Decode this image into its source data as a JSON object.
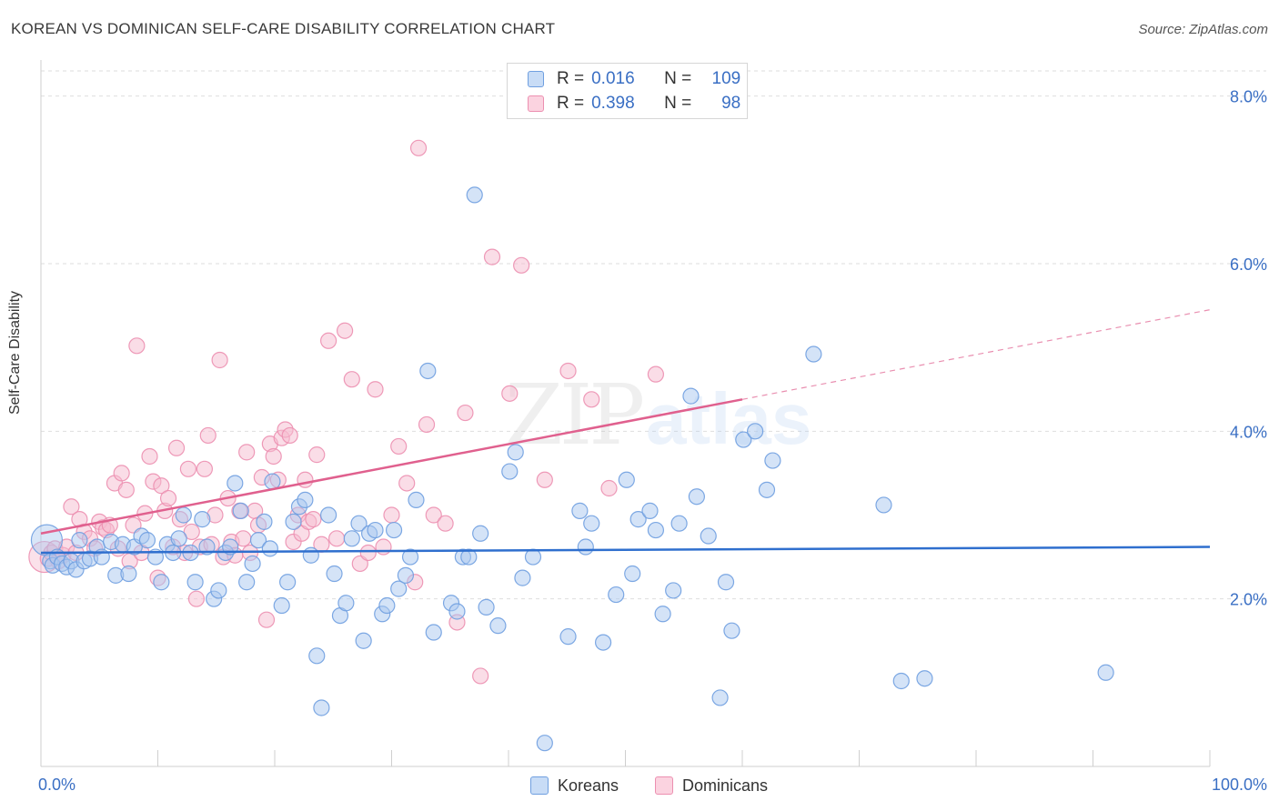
{
  "header": {
    "title": "KOREAN VS DOMINICAN SELF-CARE DISABILITY CORRELATION CHART",
    "source": "Source: ZipAtlas.com"
  },
  "legend": {
    "rows": [
      {
        "r_label": "R =",
        "r_value": "0.016",
        "n_label": "N =",
        "n_value": "109"
      },
      {
        "r_label": "R =",
        "r_value": "0.398",
        "n_label": "N =",
        "n_value": "98"
      }
    ]
  },
  "bottom_legend": [
    "Koreans",
    "Dominicans"
  ],
  "colors": {
    "koreans_fill": "#a9c8f0",
    "koreans_stroke": "#6f9fe0",
    "koreans_line": "#2f6fce",
    "dominicans_fill": "#f6bcd0",
    "dominicans_stroke": "#ec8fb0",
    "dominicans_line": "#e0608e",
    "tick_label": "#3a6fc4",
    "grid": "#dedede"
  },
  "chart_data": {
    "type": "scatter",
    "title": "KOREAN VS DOMINICAN SELF-CARE DISABILITY CORRELATION CHART",
    "xlabel": "",
    "ylabel": "Self-Care Disability",
    "xlim": [
      0,
      100
    ],
    "ylim": [
      0,
      8.3
    ],
    "x_tick_labels": [
      "0.0%",
      "100.0%"
    ],
    "y_ticks": [
      2,
      4,
      6,
      8
    ],
    "y_tick_labels": [
      "2.0%",
      "4.0%",
      "6.0%",
      "8.0%"
    ],
    "grid": true,
    "legend_position": "top-center",
    "series": [
      {
        "name": "Koreans",
        "r": 0.016,
        "n": 109,
        "trend": {
          "x": [
            0,
            100
          ],
          "y": [
            2.55,
            2.62
          ]
        },
        "points": [
          [
            0.5,
            2.7
          ],
          [
            0.8,
            2.45
          ],
          [
            1.0,
            2.4
          ],
          [
            1.4,
            2.5
          ],
          [
            1.8,
            2.42
          ],
          [
            2.2,
            2.38
          ],
          [
            2.6,
            2.45
          ],
          [
            3.0,
            2.35
          ],
          [
            3.3,
            2.7
          ],
          [
            3.7,
            2.45
          ],
          [
            4.2,
            2.48
          ],
          [
            4.8,
            2.62
          ],
          [
            5.2,
            2.5
          ],
          [
            6.0,
            2.68
          ],
          [
            6.4,
            2.28
          ],
          [
            7.0,
            2.65
          ],
          [
            7.5,
            2.3
          ],
          [
            8.0,
            2.62
          ],
          [
            8.6,
            2.75
          ],
          [
            9.1,
            2.7
          ],
          [
            9.8,
            2.5
          ],
          [
            10.3,
            2.2
          ],
          [
            10.8,
            2.65
          ],
          [
            11.3,
            2.55
          ],
          [
            11.8,
            2.72
          ],
          [
            12.2,
            3.0
          ],
          [
            12.8,
            2.55
          ],
          [
            13.2,
            2.2
          ],
          [
            13.8,
            2.95
          ],
          [
            14.2,
            2.62
          ],
          [
            14.8,
            2.0
          ],
          [
            15.2,
            2.1
          ],
          [
            15.8,
            2.55
          ],
          [
            16.2,
            2.62
          ],
          [
            16.6,
            3.38
          ],
          [
            17.1,
            3.05
          ],
          [
            17.6,
            2.2
          ],
          [
            18.1,
            2.42
          ],
          [
            18.6,
            2.7
          ],
          [
            19.1,
            2.92
          ],
          [
            19.6,
            2.6
          ],
          [
            19.8,
            3.4
          ],
          [
            20.6,
            1.92
          ],
          [
            21.1,
            2.2
          ],
          [
            21.6,
            2.92
          ],
          [
            22.1,
            3.1
          ],
          [
            22.6,
            3.18
          ],
          [
            23.1,
            2.52
          ],
          [
            23.6,
            1.32
          ],
          [
            24.0,
            0.7
          ],
          [
            24.6,
            3.0
          ],
          [
            25.1,
            2.3
          ],
          [
            25.6,
            1.8
          ],
          [
            26.1,
            1.95
          ],
          [
            26.6,
            2.72
          ],
          [
            27.2,
            2.9
          ],
          [
            27.6,
            1.5
          ],
          [
            28.1,
            2.78
          ],
          [
            28.6,
            2.82
          ],
          [
            29.2,
            1.82
          ],
          [
            29.6,
            1.92
          ],
          [
            30.2,
            2.82
          ],
          [
            30.6,
            2.12
          ],
          [
            31.2,
            2.28
          ],
          [
            31.6,
            2.5
          ],
          [
            32.1,
            3.18
          ],
          [
            33.1,
            4.72
          ],
          [
            33.6,
            1.6
          ],
          [
            35.1,
            1.95
          ],
          [
            35.6,
            1.85
          ],
          [
            36.1,
            2.5
          ],
          [
            36.6,
            2.5
          ],
          [
            37.1,
            6.82
          ],
          [
            37.6,
            2.78
          ],
          [
            38.1,
            1.9
          ],
          [
            39.1,
            1.68
          ],
          [
            40.1,
            3.52
          ],
          [
            40.6,
            3.75
          ],
          [
            41.2,
            2.25
          ],
          [
            42.1,
            2.5
          ],
          [
            43.1,
            0.28
          ],
          [
            45.1,
            1.55
          ],
          [
            46.1,
            3.05
          ],
          [
            46.6,
            2.62
          ],
          [
            47.1,
            2.9
          ],
          [
            48.1,
            1.48
          ],
          [
            49.2,
            2.05
          ],
          [
            50.1,
            3.42
          ],
          [
            50.6,
            2.3
          ],
          [
            51.1,
            2.95
          ],
          [
            52.1,
            3.05
          ],
          [
            52.6,
            2.82
          ],
          [
            53.2,
            1.82
          ],
          [
            54.1,
            2.1
          ],
          [
            54.6,
            2.9
          ],
          [
            55.6,
            4.42
          ],
          [
            56.1,
            3.22
          ],
          [
            57.1,
            2.75
          ],
          [
            58.1,
            0.82
          ],
          [
            58.6,
            2.2
          ],
          [
            59.1,
            1.62
          ],
          [
            60.1,
            3.9
          ],
          [
            61.1,
            4.0
          ],
          [
            62.1,
            3.3
          ],
          [
            62.6,
            3.65
          ],
          [
            66.1,
            4.92
          ],
          [
            72.1,
            3.12
          ],
          [
            73.6,
            1.02
          ],
          [
            75.6,
            1.05
          ],
          [
            91.1,
            1.12
          ]
        ]
      },
      {
        "name": "Dominicans",
        "r": 0.398,
        "n": 98,
        "trend": {
          "x": [
            0,
            60
          ],
          "y": [
            2.78,
            4.38
          ]
        },
        "trend_extension": {
          "x": [
            60,
            100
          ],
          "y": [
            4.38,
            5.45
          ]
        },
        "points": [
          [
            0.3,
            2.5
          ],
          [
            0.6,
            2.48
          ],
          [
            0.9,
            2.55
          ],
          [
            1.2,
            2.6
          ],
          [
            1.5,
            2.45
          ],
          [
            1.9,
            2.52
          ],
          [
            2.2,
            2.62
          ],
          [
            2.6,
            3.1
          ],
          [
            3.0,
            2.55
          ],
          [
            3.3,
            2.95
          ],
          [
            3.7,
            2.8
          ],
          [
            4.2,
            2.72
          ],
          [
            4.6,
            2.6
          ],
          [
            5.0,
            2.92
          ],
          [
            5.3,
            2.85
          ],
          [
            5.6,
            2.82
          ],
          [
            5.9,
            2.88
          ],
          [
            6.3,
            3.38
          ],
          [
            6.6,
            2.6
          ],
          [
            6.9,
            3.5
          ],
          [
            7.3,
            3.3
          ],
          [
            7.6,
            2.45
          ],
          [
            7.9,
            2.88
          ],
          [
            8.2,
            5.02
          ],
          [
            8.6,
            2.55
          ],
          [
            8.9,
            3.02
          ],
          [
            9.3,
            3.7
          ],
          [
            9.6,
            3.4
          ],
          [
            10.0,
            2.25
          ],
          [
            10.3,
            3.35
          ],
          [
            10.6,
            3.05
          ],
          [
            10.9,
            3.2
          ],
          [
            11.3,
            2.62
          ],
          [
            11.6,
            3.8
          ],
          [
            11.9,
            2.95
          ],
          [
            12.3,
            2.55
          ],
          [
            12.6,
            3.55
          ],
          [
            12.9,
            2.8
          ],
          [
            13.3,
            2.0
          ],
          [
            13.6,
            2.62
          ],
          [
            14.0,
            3.55
          ],
          [
            14.3,
            3.95
          ],
          [
            14.6,
            2.65
          ],
          [
            14.9,
            3.0
          ],
          [
            15.3,
            4.85
          ],
          [
            15.6,
            2.5
          ],
          [
            16.0,
            3.2
          ],
          [
            16.3,
            2.68
          ],
          [
            16.6,
            2.52
          ],
          [
            17.0,
            3.05
          ],
          [
            17.3,
            2.72
          ],
          [
            17.6,
            3.75
          ],
          [
            17.9,
            2.55
          ],
          [
            18.3,
            3.05
          ],
          [
            18.6,
            2.88
          ],
          [
            18.9,
            3.45
          ],
          [
            19.3,
            1.75
          ],
          [
            19.6,
            3.85
          ],
          [
            19.9,
            3.7
          ],
          [
            20.3,
            3.42
          ],
          [
            20.6,
            3.92
          ],
          [
            20.9,
            4.02
          ],
          [
            21.3,
            3.95
          ],
          [
            21.6,
            2.68
          ],
          [
            22.0,
            3.0
          ],
          [
            22.3,
            2.78
          ],
          [
            22.6,
            3.42
          ],
          [
            22.9,
            2.92
          ],
          [
            23.3,
            2.95
          ],
          [
            23.6,
            3.72
          ],
          [
            24.0,
            2.65
          ],
          [
            24.6,
            5.08
          ],
          [
            25.3,
            2.72
          ],
          [
            26.0,
            5.2
          ],
          [
            26.6,
            4.62
          ],
          [
            27.3,
            2.42
          ],
          [
            28.0,
            2.55
          ],
          [
            28.6,
            4.5
          ],
          [
            29.3,
            2.62
          ],
          [
            30.0,
            3.0
          ],
          [
            30.6,
            3.82
          ],
          [
            31.3,
            3.38
          ],
          [
            32.0,
            2.2
          ],
          [
            32.3,
            7.38
          ],
          [
            33.0,
            4.08
          ],
          [
            33.6,
            3.0
          ],
          [
            34.6,
            2.9
          ],
          [
            35.6,
            1.72
          ],
          [
            36.3,
            4.22
          ],
          [
            37.6,
            1.08
          ],
          [
            38.6,
            6.08
          ],
          [
            40.1,
            4.45
          ],
          [
            41.1,
            5.98
          ],
          [
            43.1,
            3.42
          ],
          [
            45.1,
            4.72
          ],
          [
            47.1,
            4.38
          ],
          [
            48.6,
            3.32
          ],
          [
            52.6,
            4.68
          ]
        ]
      }
    ]
  }
}
